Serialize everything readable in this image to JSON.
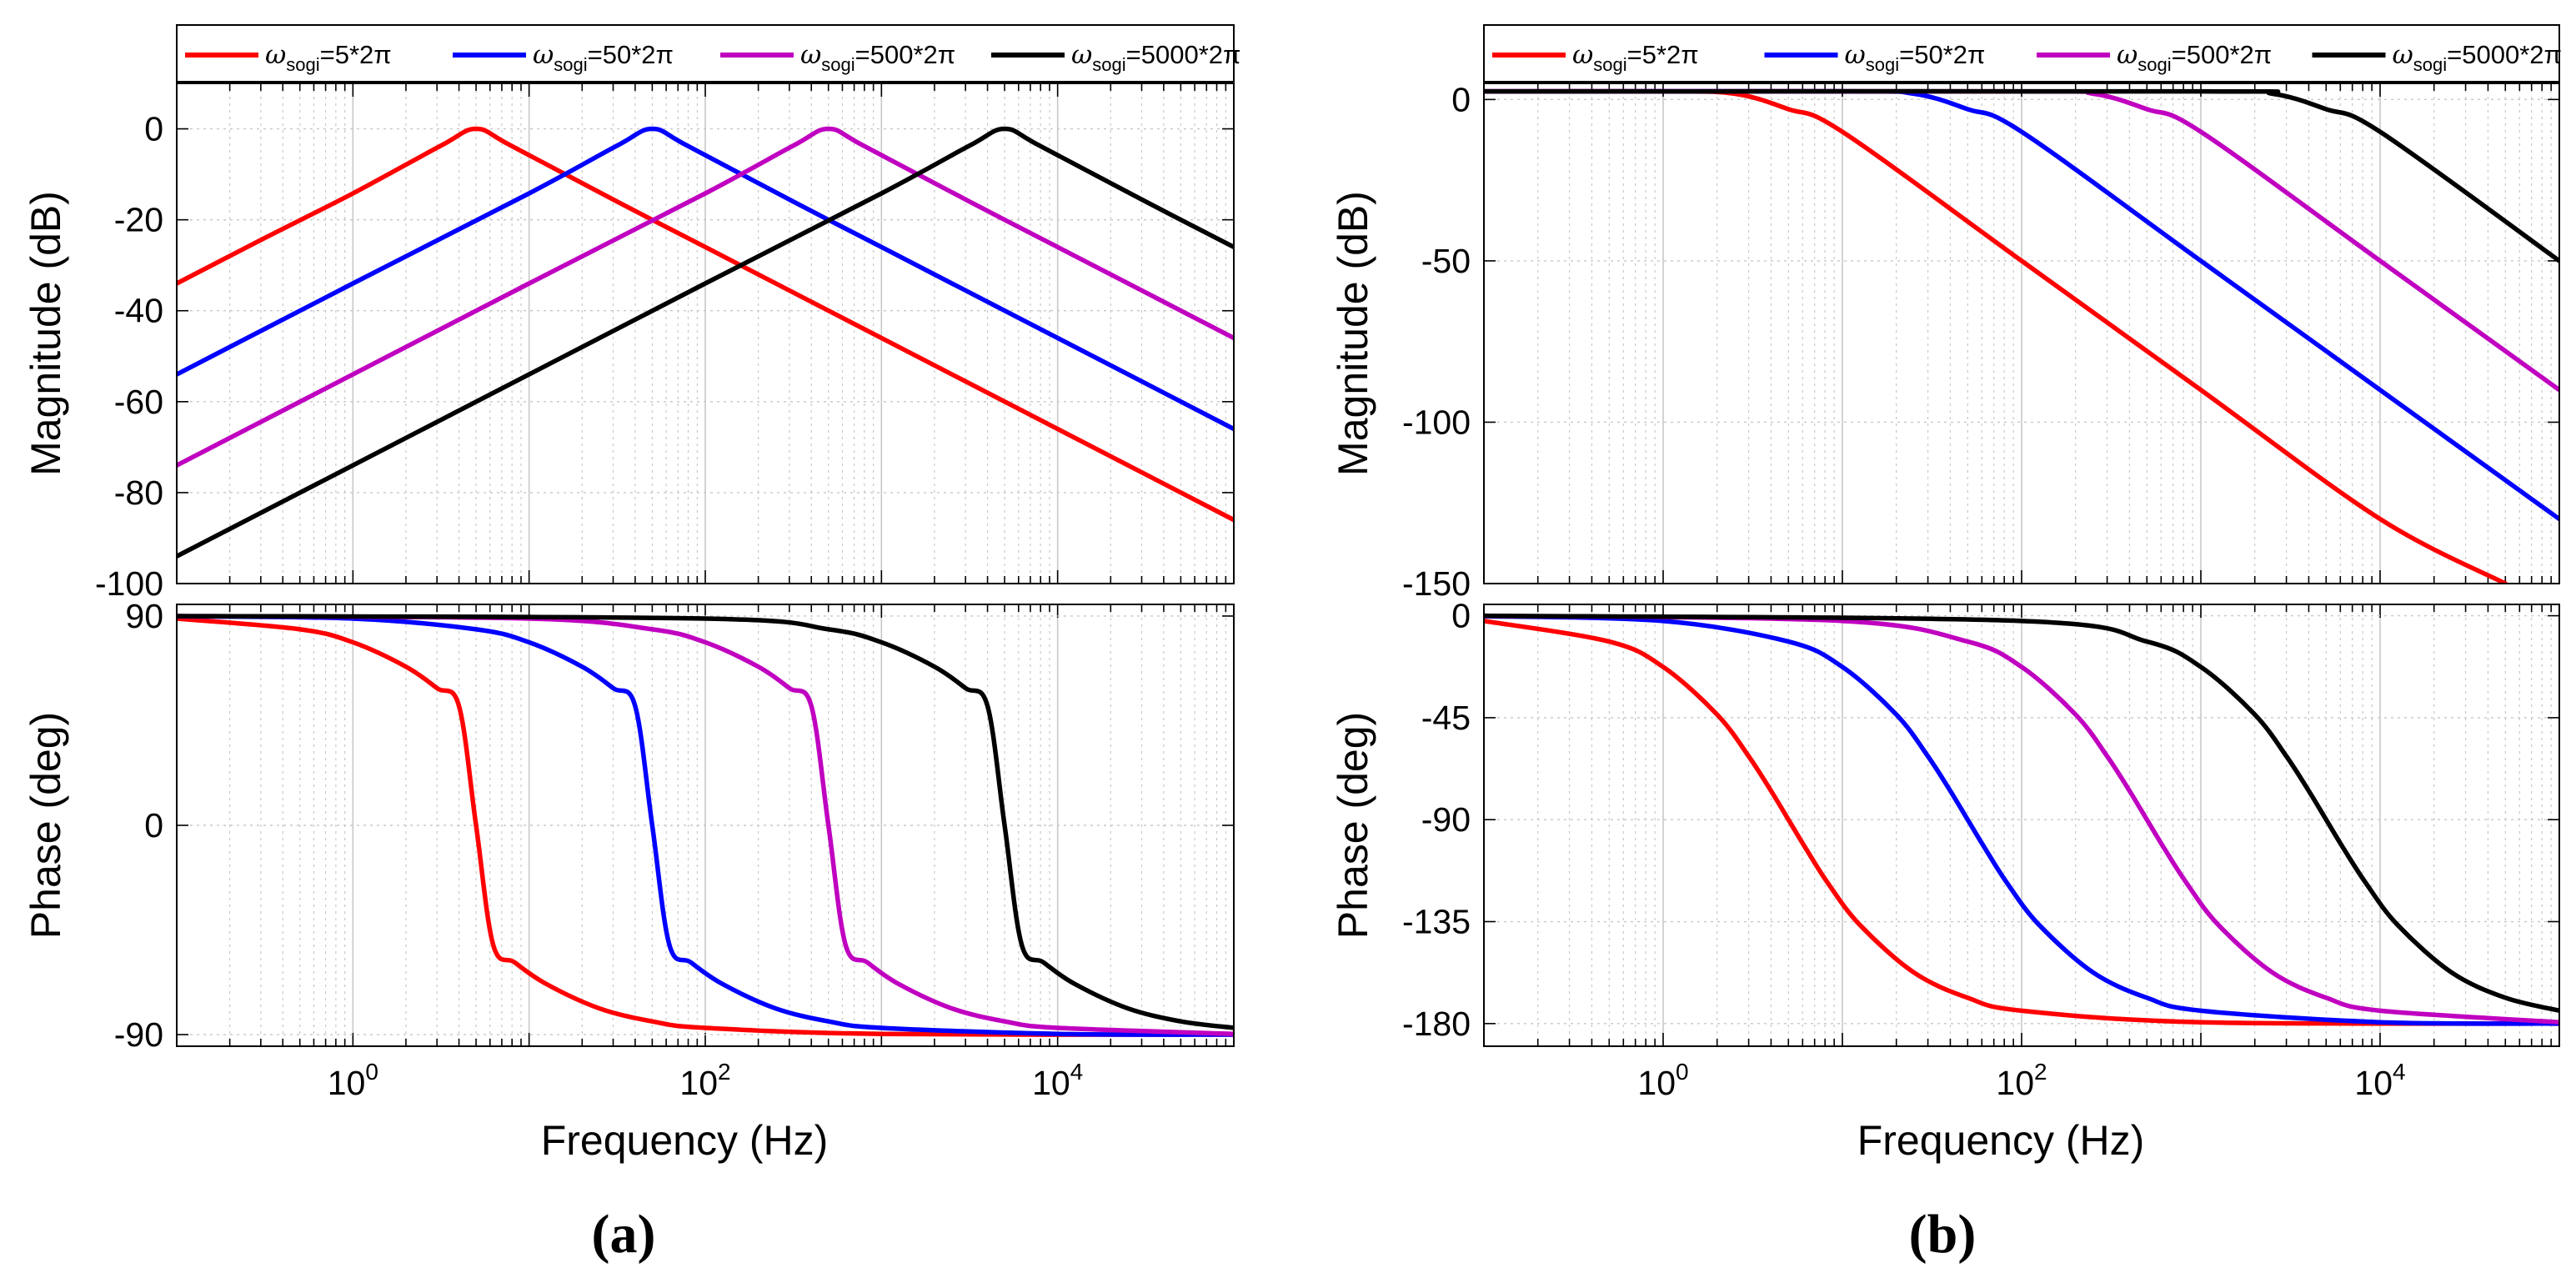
{
  "chart_data": [
    {
      "id": "a-mag",
      "type": "line",
      "log_x": true,
      "xlim": [
        0.1,
        100000
      ],
      "ylim": [
        -100,
        10
      ],
      "yticks": [
        0,
        -20,
        -40,
        -60,
        -80,
        -100
      ],
      "ytick_labels": [
        "0",
        "-20",
        "-40",
        "-60",
        "-80",
        "-100"
      ],
      "xtick_labels": [],
      "ylabel": "Magnitude (dB)",
      "xlabel": "",
      "grid": true,
      "legend": "top",
      "series": [
        {
          "name": "ωsogi=5*2π",
          "x": [
            0.1,
            0.316,
            1,
            3.16,
            5,
            7.9,
            31.6,
            100,
            1000,
            10000,
            100000
          ],
          "values": [
            -34.0,
            -24.0,
            -14.2,
            -3.7,
            0,
            -3.7,
            -16.0,
            -26.0,
            -46.0,
            -66.0,
            -86.0
          ]
        },
        {
          "name": "ωsogi=50*2π",
          "x": [
            0.1,
            1,
            10,
            31.6,
            50,
            79,
            316,
            1000,
            10000,
            100000
          ],
          "values": [
            -54.0,
            -34.0,
            -14.2,
            -3.7,
            0,
            -3.7,
            -16.0,
            -26.0,
            -46.0,
            -66.0
          ]
        },
        {
          "name": "ωsogi=500*2π",
          "x": [
            0.1,
            1,
            10,
            100,
            316,
            500,
            790,
            3162,
            10000,
            100000
          ],
          "values": [
            -74.0,
            -54.0,
            -34.0,
            -14.2,
            -3.7,
            0,
            -3.7,
            -16.0,
            -26.0,
            -46.0
          ]
        },
        {
          "name": "ωsogi=5000*2π",
          "x": [
            0.1,
            1,
            10,
            100,
            1000,
            3162,
            5000,
            7900,
            31623,
            100000
          ],
          "values": [
            -94.0,
            -74.0,
            -54.0,
            -34.0,
            -14.2,
            -3.7,
            0,
            -3.7,
            -16.0,
            -26.0
          ]
        }
      ]
    },
    {
      "id": "a-phase",
      "type": "line",
      "log_x": true,
      "xlim": [
        0.1,
        100000
      ],
      "ylim": [
        -95,
        95
      ],
      "yticks": [
        90,
        0,
        -90
      ],
      "ytick_labels": [
        "90",
        "0",
        "-90"
      ],
      "xtick_labels": [
        "10",
        "10",
        "10"
      ],
      "xtick_exponents": [
        "0",
        "2",
        "4"
      ],
      "xticks": [
        1,
        100,
        10000
      ],
      "ylabel": "Phase (deg)",
      "xlabel": "Frequency  (Hz)",
      "grid": true,
      "series": [
        {
          "name": "ωsogi=5*2π",
          "x": [
            0.1,
            0.5,
            1,
            2,
            3,
            4,
            5,
            6.25,
            8.3,
            12.5,
            25,
            50,
            100,
            1000,
            100000
          ],
          "values": [
            88.9,
            84.3,
            78.7,
            68.2,
            59.0,
            51.3,
            0,
            -51.3,
            -59.0,
            -68.2,
            -78.7,
            -84.3,
            -87.1,
            -89.7,
            -90.0
          ]
        },
        {
          "name": "ωsogi=50*2π",
          "x": [
            0.1,
            1,
            5,
            10,
            20,
            30,
            40,
            50,
            62.5,
            83,
            125,
            250,
            500,
            1000,
            10000,
            100000
          ],
          "values": [
            89.9,
            88.9,
            84.3,
            78.7,
            68.2,
            59.0,
            51.3,
            0,
            -51.3,
            -59.0,
            -68.2,
            -78.7,
            -84.3,
            -87.1,
            -89.7,
            -90.0
          ]
        },
        {
          "name": "ωsogi=500*2π",
          "x": [
            0.1,
            10,
            50,
            100,
            200,
            300,
            400,
            500,
            625,
            833,
            1250,
            2500,
            5000,
            10000,
            100000
          ],
          "values": [
            90.0,
            88.9,
            84.3,
            78.7,
            68.2,
            59.0,
            51.3,
            0,
            -51.3,
            -59.0,
            -68.2,
            -78.7,
            -84.3,
            -87.1,
            -89.7
          ]
        },
        {
          "name": "ωsogi=5000*2π",
          "x": [
            0.1,
            100,
            500,
            1000,
            2000,
            3000,
            4000,
            5000,
            6250,
            8333,
            12500,
            25000,
            50000,
            100000
          ],
          "values": [
            90.0,
            88.9,
            84.3,
            78.7,
            68.2,
            59.0,
            51.3,
            0,
            -51.3,
            -59.0,
            -68.2,
            -78.7,
            -84.3,
            -87.1
          ]
        }
      ]
    },
    {
      "id": "b-mag",
      "type": "line",
      "log_x": true,
      "xlim": [
        0.1,
        100000
      ],
      "ylim": [
        -150,
        5
      ],
      "yticks": [
        0,
        -50,
        -100,
        -150
      ],
      "ytick_labels": [
        "0",
        "-50",
        "-100",
        "-150"
      ],
      "xtick_labels": [],
      "ylabel": "Magnitude (dB)",
      "xlabel": "",
      "grid": true,
      "legend": "top",
      "series": [
        {
          "name": "ωsogi=5*2π",
          "x": [
            0.1,
            1,
            2.5,
            5,
            10,
            100,
            1000,
            10000,
            50000
          ],
          "values": [
            2.5,
            2.5,
            1.8,
            -3.0,
            -10.0,
            -50.0,
            -90.0,
            -130.0,
            -150.0
          ]
        },
        {
          "name": "ωsogi=50*2π",
          "x": [
            0.1,
            10,
            25,
            50,
            100,
            1000,
            10000,
            100000
          ],
          "values": [
            2.5,
            2.5,
            1.8,
            -3.0,
            -10.0,
            -50.0,
            -90.0,
            -130.0
          ]
        },
        {
          "name": "ωsogi=500*2π",
          "x": [
            0.1,
            100,
            250,
            500,
            1000,
            10000,
            100000
          ],
          "values": [
            2.5,
            2.5,
            1.8,
            -3.0,
            -10.0,
            -50.0,
            -90.0
          ]
        },
        {
          "name": "ωsogi=5000*2π",
          "x": [
            0.1,
            1000,
            2500,
            5000,
            10000,
            100000
          ],
          "values": [
            2.5,
            2.5,
            1.8,
            -3.0,
            -10.0,
            -50.0
          ]
        }
      ]
    },
    {
      "id": "b-phase",
      "type": "line",
      "log_x": true,
      "xlim": [
        0.1,
        100000
      ],
      "ylim": [
        -190,
        5
      ],
      "yticks": [
        0,
        -45,
        -90,
        -135,
        -180
      ],
      "ytick_labels": [
        "0",
        "-45",
        "-90",
        "-135",
        "-180"
      ],
      "xtick_labels": [
        "10",
        "10",
        "10"
      ],
      "xtick_exponents": [
        "0",
        "2",
        "4"
      ],
      "xticks": [
        1,
        100,
        10000
      ],
      "ylabel": "Phase (deg)",
      "xlabel": "Frequency  (Hz)",
      "grid": true,
      "series": [
        {
          "name": "ωsogi=5*2π",
          "x": [
            0.1,
            0.5,
            1,
            2,
            3,
            4,
            5,
            6.25,
            8.3,
            12.5,
            25,
            50,
            100,
            1000,
            100000
          ],
          "values": [
            -2.3,
            -11.4,
            -22.6,
            -43.6,
            -62.0,
            -77.3,
            -90.0,
            -102.7,
            -118.0,
            -136.4,
            -157.4,
            -168.6,
            -174.3,
            -179.4,
            -180.0
          ]
        },
        {
          "name": "ωsogi=50*2π",
          "x": [
            0.1,
            1,
            5,
            10,
            20,
            30,
            40,
            50,
            62.5,
            83,
            125,
            250,
            500,
            1000,
            10000,
            100000
          ],
          "values": [
            -0.2,
            -2.3,
            -11.4,
            -22.6,
            -43.6,
            -62.0,
            -77.3,
            -90.0,
            -102.7,
            -118.0,
            -136.4,
            -157.4,
            -168.6,
            -174.3,
            -179.4,
            -180.0
          ]
        },
        {
          "name": "ωsogi=500*2π",
          "x": [
            0.1,
            10,
            50,
            100,
            200,
            300,
            400,
            500,
            625,
            833,
            1250,
            2500,
            5000,
            10000,
            100000
          ],
          "values": [
            0.0,
            -2.3,
            -11.4,
            -22.6,
            -43.6,
            -62.0,
            -77.3,
            -90.0,
            -102.7,
            -118.0,
            -136.4,
            -157.4,
            -168.6,
            -174.3,
            -179.4
          ]
        },
        {
          "name": "ωsogi=5000*2π",
          "x": [
            0.1,
            100,
            500,
            1000,
            2000,
            3000,
            4000,
            5000,
            6250,
            8333,
            12500,
            25000,
            50000,
            100000
          ],
          "values": [
            0.0,
            -2.3,
            -11.4,
            -22.6,
            -43.6,
            -62.0,
            -77.3,
            -90.0,
            -102.7,
            -118.0,
            -136.4,
            -157.4,
            -168.6,
            -174.3
          ]
        }
      ]
    }
  ],
  "colors": {
    "s5": "#ff0000",
    "s50": "#0000ff",
    "s500": "#c000c0",
    "s5000": "#000000",
    "grid": "#c8c8c8",
    "axis": "#000000"
  },
  "legend": {
    "entries": [
      {
        "omega": "ω",
        "sub": "sogi",
        "rest": "=5*2π"
      },
      {
        "omega": "ω",
        "sub": "sogi",
        "rest": "=50*2π"
      },
      {
        "omega": "ω",
        "sub": "sogi",
        "rest": "=500*2π"
      },
      {
        "omega": "ω",
        "sub": "sogi",
        "rest": "=5000*2π"
      }
    ]
  },
  "labels": {
    "sub_a": "(a)",
    "sub_b": "(b)"
  }
}
